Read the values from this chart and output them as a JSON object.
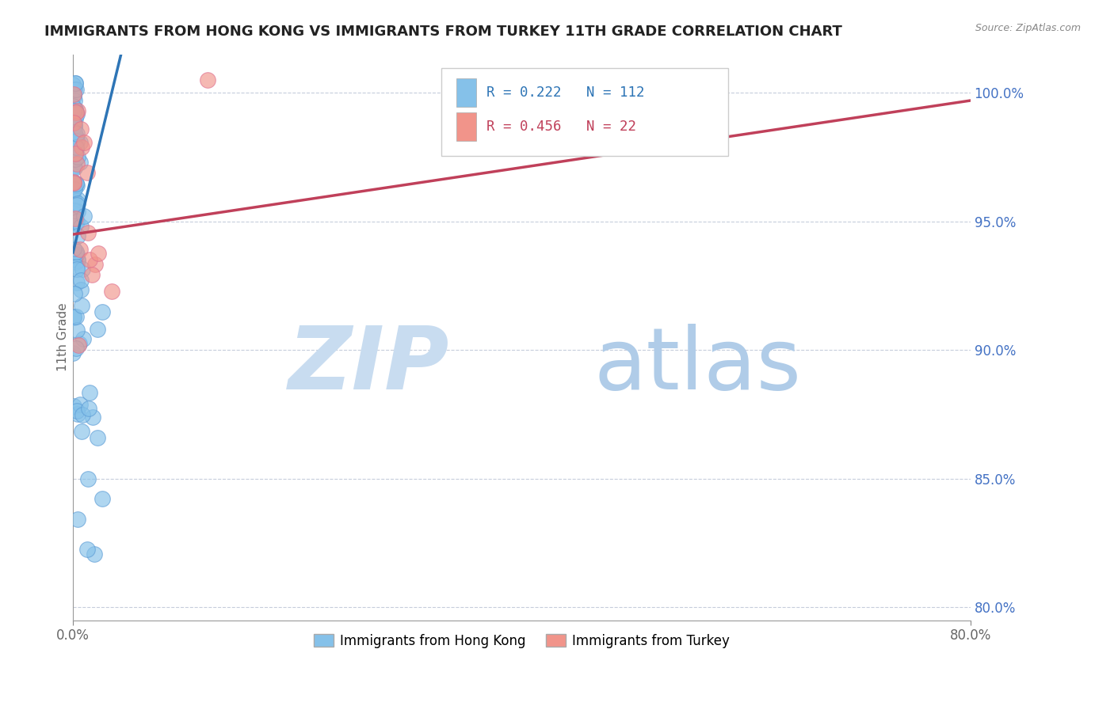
{
  "title": "IMMIGRANTS FROM HONG KONG VS IMMIGRANTS FROM TURKEY 11TH GRADE CORRELATION CHART",
  "source": "Source: ZipAtlas.com",
  "ylabel": "11th Grade",
  "y_right_ticks": [
    100.0,
    95.0,
    90.0,
    85.0,
    80.0
  ],
  "y_right_tick_labels": [
    "100.0%",
    "95.0%",
    "90.0%",
    "85.0%",
    "80.0%"
  ],
  "xlim": [
    0.0,
    80.0
  ],
  "ylim": [
    79.5,
    101.5
  ],
  "hk_R": 0.222,
  "hk_N": 112,
  "tr_R": 0.456,
  "tr_N": 22,
  "hk_color": "#85C1E9",
  "tr_color": "#F1948A",
  "hk_edge_color": "#5B9BD5",
  "tr_edge_color": "#E07090",
  "hk_line_color": "#2E75B6",
  "tr_line_color": "#C0405A",
  "watermark_zip_color": "#C8DCF0",
  "watermark_atlas_color": "#B0CCE8",
  "background_color": "#FFFFFF",
  "title_fontsize": 13,
  "source_fontsize": 9,
  "tick_fontsize": 12,
  "ylabel_fontsize": 11,
  "legend_r_hk_color": "#2E75B6",
  "legend_r_tr_color": "#C0405A"
}
